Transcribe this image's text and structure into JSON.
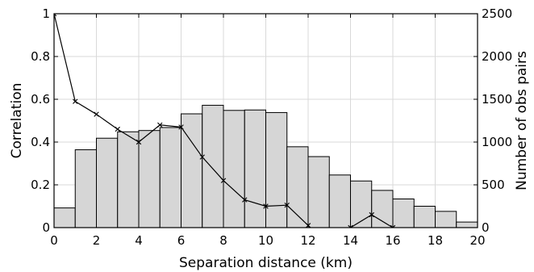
{
  "chart_data": {
    "type": "bar+line",
    "xlabel": "Separation distance (km)",
    "ylabel_left": "Correlation",
    "ylabel_right": "Number of obs pairs",
    "xlim": [
      0,
      20
    ],
    "ylim_left": [
      0,
      1
    ],
    "ylim_right": [
      0,
      2500
    ],
    "grid": true,
    "x_ticks": [
      "0",
      "2",
      "4",
      "6",
      "8",
      "10",
      "12",
      "14",
      "16",
      "18",
      "20"
    ],
    "y_left_ticks": [
      "0",
      "0.2",
      "0.4",
      "0.6",
      "0.8",
      "1"
    ],
    "y_right_ticks": [
      "0",
      "500",
      "1000",
      "1500",
      "2000",
      "2500"
    ],
    "bars": {
      "bin_width": 1,
      "bin_starts": [
        0,
        1,
        2,
        3,
        4,
        5,
        6,
        7,
        8,
        9,
        10,
        11,
        12,
        13,
        14,
        15,
        16,
        17,
        18,
        19
      ],
      "counts": [
        230,
        910,
        1045,
        1120,
        1135,
        1170,
        1330,
        1430,
        1370,
        1375,
        1345,
        945,
        830,
        615,
        545,
        435,
        335,
        250,
        190,
        65
      ]
    },
    "correlation": {
      "x": [
        0,
        1,
        2,
        3,
        4,
        5,
        6,
        7,
        8,
        9,
        10,
        11,
        12,
        13,
        14,
        15,
        16
      ],
      "y": [
        1.0,
        0.59,
        0.53,
        0.46,
        0.4,
        0.48,
        0.47,
        0.33,
        0.22,
        0.13,
        0.1,
        0.105,
        0.01,
        -0.08,
        0.0,
        0.06,
        0.0
      ]
    }
  }
}
